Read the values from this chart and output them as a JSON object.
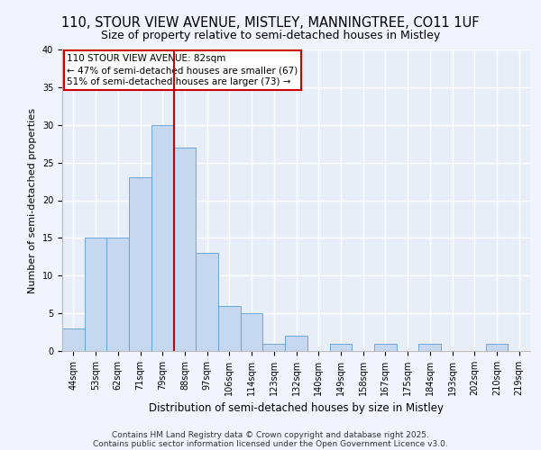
{
  "title1": "110, STOUR VIEW AVENUE, MISTLEY, MANNINGTREE, CO11 1UF",
  "title2": "Size of property relative to semi-detached houses in Mistley",
  "xlabel": "Distribution of semi-detached houses by size in Mistley",
  "ylabel": "Number of semi-detached properties",
  "categories": [
    "44sqm",
    "53sqm",
    "62sqm",
    "71sqm",
    "79sqm",
    "88sqm",
    "97sqm",
    "106sqm",
    "114sqm",
    "123sqm",
    "132sqm",
    "140sqm",
    "149sqm",
    "158sqm",
    "167sqm",
    "175sqm",
    "184sqm",
    "193sqm",
    "202sqm",
    "210sqm",
    "219sqm"
  ],
  "values": [
    3,
    15,
    15,
    23,
    30,
    27,
    13,
    6,
    5,
    1,
    2,
    0,
    1,
    0,
    1,
    0,
    1,
    0,
    0,
    1,
    0
  ],
  "bar_color": "#c5d8f0",
  "bar_edge_color": "#5a9fd4",
  "vline_x_index": 4,
  "vline_color": "#cc0000",
  "annotation_box_color": "#cc0000",
  "property_label": "110 STOUR VIEW AVENUE: 82sqm",
  "pct_smaller": 47,
  "n_smaller": 67,
  "pct_larger": 51,
  "n_larger": 73,
  "bg_color": "#e8eef8",
  "fig_bg_color": "#f0f4fc",
  "grid_color": "#ffffff",
  "ylim": [
    0,
    40
  ],
  "yticks": [
    0,
    5,
    10,
    15,
    20,
    25,
    30,
    35,
    40
  ],
  "footnote1": "Contains HM Land Registry data © Crown copyright and database right 2025.",
  "footnote2": "Contains public sector information licensed under the Open Government Licence v3.0.",
  "title1_fontsize": 10.5,
  "title2_fontsize": 9,
  "xlabel_fontsize": 8.5,
  "ylabel_fontsize": 8,
  "tick_fontsize": 7,
  "annot_fontsize": 7.5,
  "footnote_fontsize": 6.5
}
